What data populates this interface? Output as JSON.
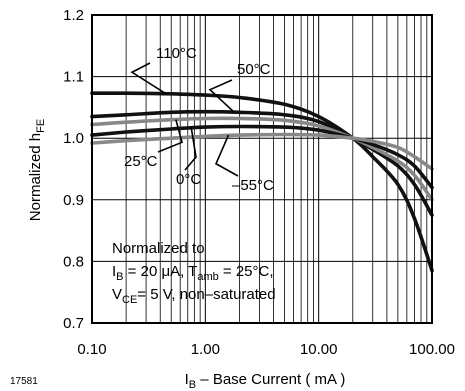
{
  "chart_data": {
    "type": "line",
    "title": "",
    "figure_id": "17581",
    "xscale": "log",
    "xlim": [
      0.1,
      100
    ],
    "ylim": [
      0.7,
      1.2
    ],
    "grid": true,
    "xticks": [
      "0.10",
      "1.00",
      "10.00",
      "100.00"
    ],
    "yticks": [
      "0.7",
      "0.8",
      "0.9",
      "1.0",
      "1.1",
      "1.2"
    ],
    "xlabel": {
      "main": "I",
      "sub": "B",
      "rest": " – Base Current ( mA )"
    },
    "ylabel": {
      "main": "Normalized  h",
      "sub": "FE"
    },
    "note": {
      "line1": "Normalized to",
      "line2": {
        "a": "I",
        "a_sub": "B",
        "b": " = 20 μA, T",
        "b_sub": "amb",
        "c": " = 25°C,"
      },
      "line3": {
        "a": "V",
        "a_sub": "CE",
        "b": "= 5 V, non–saturated"
      }
    },
    "series": [
      {
        "name": "110°C",
        "color": "#111111",
        "x": [
          0.1,
          0.2,
          0.5,
          1,
          2,
          5,
          10,
          20,
          30,
          50,
          70,
          100
        ],
        "y": [
          1.073,
          1.073,
          1.072,
          1.07,
          1.066,
          1.055,
          1.035,
          1.0,
          0.97,
          0.925,
          0.87,
          0.785
        ]
      },
      {
        "name": "50°C",
        "color": "#111111",
        "x": [
          0.1,
          0.2,
          0.5,
          1,
          2,
          5,
          10,
          20,
          30,
          50,
          70,
          100
        ],
        "y": [
          1.035,
          1.038,
          1.042,
          1.043,
          1.042,
          1.038,
          1.027,
          1.0,
          0.982,
          0.955,
          0.925,
          0.875
        ]
      },
      {
        "name": "25°C",
        "color": "#888888",
        "x": [
          0.1,
          0.2,
          0.5,
          1,
          2,
          5,
          10,
          20,
          30,
          50,
          70,
          100
        ],
        "y": [
          1.022,
          1.026,
          1.03,
          1.032,
          1.032,
          1.029,
          1.02,
          1.0,
          0.985,
          0.963,
          0.94,
          0.9
        ]
      },
      {
        "name": "0°C",
        "color": "#111111",
        "x": [
          0.1,
          0.2,
          0.5,
          1,
          2,
          5,
          10,
          20,
          30,
          50,
          70,
          100
        ],
        "y": [
          1.005,
          1.01,
          1.015,
          1.018,
          1.019,
          1.018,
          1.013,
          1.0,
          0.99,
          0.973,
          0.955,
          0.92
        ]
      },
      {
        "name": "–55°C",
        "color": "#888888",
        "x": [
          0.1,
          0.2,
          0.5,
          1,
          2,
          5,
          10,
          20,
          30,
          50,
          70,
          100
        ],
        "y": [
          0.992,
          0.996,
          1.0,
          1.003,
          1.005,
          1.006,
          1.005,
          1.0,
          0.995,
          0.985,
          0.97,
          0.95
        ]
      }
    ],
    "labels": [
      "110°C",
      "50°C",
      "25°C",
      "0°C",
      "–55°C"
    ]
  }
}
